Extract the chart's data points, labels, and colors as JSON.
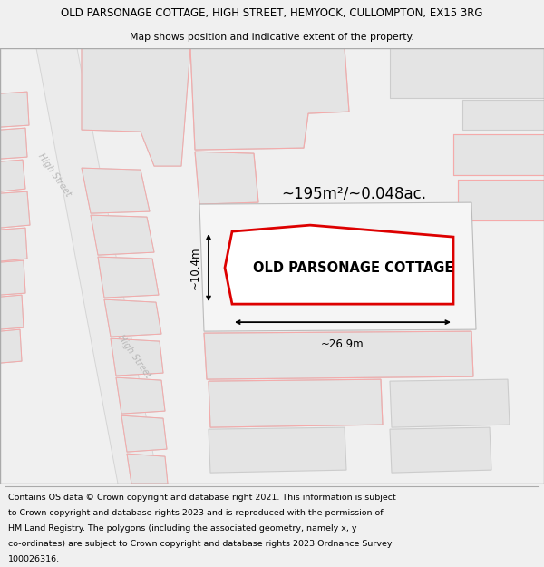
{
  "title_line1": "OLD PARSONAGE COTTAGE, HIGH STREET, HEMYOCK, CULLOMPTON, EX15 3RG",
  "title_line2": "Map shows position and indicative extent of the property.",
  "property_label": "OLD PARSONAGE COTTAGE",
  "area_label": "~195m²/~0.048ac.",
  "dim_width": "~26.9m",
  "dim_height": "~10.4m",
  "street_label": "High Street",
  "footer_lines": [
    "Contains OS data © Crown copyright and database right 2021. This information is subject",
    "to Crown copyright and database rights 2023 and is reproduced with the permission of",
    "HM Land Registry. The polygons (including the associated geometry, namely x, y",
    "co-ordinates) are subject to Crown copyright and database rights 2023 Ordnance Survey",
    "100026316."
  ],
  "bg_color": "#f0f0f0",
  "map_bg": "#ffffff",
  "building_fill": "#e2e2e2",
  "building_ec": "#c8c8c8",
  "pink_color": "#f5aaaa",
  "red_color": "#dd0000",
  "title_fontsize": 8.5,
  "subtitle_fontsize": 7.8,
  "label_fontsize": 10.5,
  "area_fontsize": 12,
  "footer_fontsize": 6.8,
  "street_fontsize": 7.0
}
